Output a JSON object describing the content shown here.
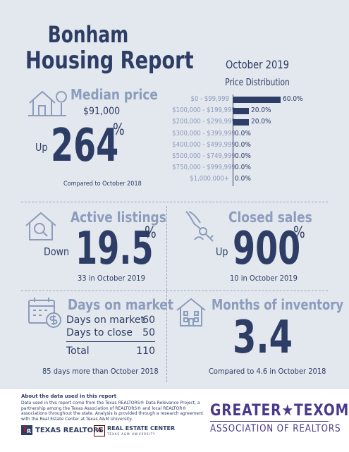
{
  "title_line1": "Bonham",
  "title_line2": "Housing Report",
  "month": "October 2019",
  "price_distribution": {
    "title": "Price Distribution",
    "chart_data": {
      "type": "bar",
      "orientation": "horizontal",
      "categories": [
        "$0 - $99,999",
        "$100,000 - $199,999",
        "$200,000 - $299,999",
        "$300,000 - $399,999",
        "$400,000 - $499,999",
        "$500,000 - $749,999",
        "$750,000 - $999,999",
        "$1,000,000+"
      ],
      "values": [
        60.0,
        20.0,
        20.0,
        0.0,
        0.0,
        0.0,
        0.0,
        0.0
      ],
      "value_labels": [
        "60.0%",
        "20.0%",
        "20.0%",
        "0.0%",
        "0.0%",
        "0.0%",
        "0.0%",
        "0.0%"
      ],
      "xlim": [
        0,
        60
      ]
    }
  },
  "median_price": {
    "label": "Median price",
    "value": "$91,000",
    "direction": "Up",
    "change": "264",
    "pct": "%",
    "compare": "Compared to October 2018"
  },
  "active_listings": {
    "label": "Active listings",
    "direction": "Down",
    "change": "19.5",
    "pct": "%",
    "compare": "33 in October 2019"
  },
  "closed_sales": {
    "label": "Closed sales",
    "direction": "Up",
    "change": "900",
    "pct": "%",
    "compare": "10 in October 2019"
  },
  "days_on_market": {
    "label": "Days on market",
    "rows": [
      {
        "name": "Days on market",
        "value": "60"
      },
      {
        "name": "Days to close",
        "value": "50"
      }
    ],
    "total_name": "Total",
    "total_value": "110",
    "compare": "85 days more than October 2018"
  },
  "months_inventory": {
    "label": "Months of inventory",
    "value": "3.4",
    "compare": "Compared to 4.6 in October 2018"
  },
  "footer": {
    "about_title": "About the data used in this report",
    "about_text": [
      "Data used in this report come from the Texas REALTORS® Data Relevance Project, a",
      "partnership among the Texas Association of REALTORS® and local REALTOR®",
      "associations throughout the state. Analysis is provided through a research agreement",
      "with the Real Estate Center at Texas A&M University."
    ],
    "texas_realtors": "TEXAS REALTORS",
    "rec_line1": "REAL ESTATE CENTER",
    "rec_line2": "TEXAS A&M UNIVERSITY",
    "assoc_line1": "GREATER★TEXOMA",
    "assoc_line2": "ASSOCIATION OF REALTORS"
  },
  "colors": {
    "navy": "#2d3d65",
    "label_blue": "#8c9cbd",
    "background": "#e3e7ee",
    "assoc_purple": "#4b3a8c"
  }
}
